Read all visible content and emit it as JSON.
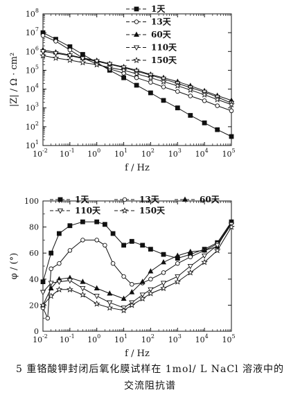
{
  "figure": {
    "caption_line1": "5   重铬酸钾封闭后氧化膜试样在 1mol/ L NaCl 溶液中的",
    "caption_line2": "交流阻抗谱"
  },
  "chart_data": [
    {
      "type": "line",
      "xscale": "log",
      "yscale": "log",
      "xlabel": "f / Hz",
      "ylabel": "|Z| / Ω · cm²",
      "xlim": [
        0.01,
        100000
      ],
      "ylim": [
        10,
        100000000
      ],
      "x_ticks": [
        {
          "base": "10",
          "exp": "-2"
        },
        {
          "base": "10",
          "exp": "-1"
        },
        {
          "base": "10",
          "exp": "0"
        },
        {
          "base": "10",
          "exp": "1"
        },
        {
          "base": "10",
          "exp": "2"
        },
        {
          "base": "10",
          "exp": "3"
        },
        {
          "base": "10",
          "exp": "4"
        },
        {
          "base": "10",
          "exp": "5"
        }
      ],
      "y_ticks": [
        {
          "base": "10",
          "exp": "1"
        },
        {
          "base": "10",
          "exp": "2"
        },
        {
          "base": "10",
          "exp": "3"
        },
        {
          "base": "10",
          "exp": "4"
        },
        {
          "base": "10",
          "exp": "5"
        },
        {
          "base": "10",
          "exp": "6"
        },
        {
          "base": "10",
          "exp": "7"
        },
        {
          "base": "10",
          "exp": "8"
        }
      ],
      "legend_position": "top-right",
      "series": [
        {
          "name": "1天",
          "marker": "square-filled",
          "x": [
            0.01,
            0.03,
            0.1,
            0.3,
            1,
            3,
            10,
            30,
            100,
            300,
            1000,
            3000,
            10000,
            30000,
            100000
          ],
          "y": [
            10000000,
            4500000,
            1800000,
            700000,
            260000,
            100000,
            40000,
            16000,
            6300,
            2500,
            1000,
            400,
            160,
            70,
            30
          ]
        },
        {
          "name": "13天",
          "marker": "circle-open",
          "x": [
            0.01,
            0.03,
            0.1,
            0.3,
            1,
            3,
            10,
            30,
            100,
            300,
            1000,
            3000,
            10000,
            30000,
            100000
          ],
          "y": [
            7000000,
            3500000,
            1200000,
            450000,
            220000,
            120000,
            70000,
            40000,
            23000,
            13000,
            7500,
            4300,
            2400,
            1300,
            700
          ]
        },
        {
          "name": "60天",
          "marker": "triangle-filled",
          "x": [
            0.01,
            0.03,
            0.1,
            0.3,
            1,
            3,
            10,
            30,
            100,
            300,
            1000,
            3000,
            10000,
            30000,
            100000
          ],
          "y": [
            1200000,
            900000,
            650000,
            450000,
            330000,
            220000,
            150000,
            100000,
            60000,
            40000,
            25000,
            15000,
            8000,
            4500,
            2500
          ]
        },
        {
          "name": "110天",
          "marker": "triangle-down-open",
          "x": [
            0.01,
            0.03,
            0.1,
            0.3,
            1,
            3,
            10,
            30,
            100,
            300,
            1000,
            3000,
            10000,
            30000,
            100000
          ],
          "y": [
            1000000,
            800000,
            600000,
            420000,
            300000,
            210000,
            140000,
            90000,
            55000,
            35000,
            20000,
            12000,
            7000,
            3800,
            1800
          ]
        },
        {
          "name": "150天",
          "marker": "star-open",
          "x": [
            0.01,
            0.03,
            0.1,
            0.3,
            1,
            3,
            10,
            30,
            100,
            300,
            1000,
            3000,
            10000,
            30000,
            100000
          ],
          "y": [
            600000,
            450000,
            350000,
            260000,
            200000,
            140000,
            100000,
            65000,
            40000,
            25000,
            15000,
            9000,
            5000,
            2800,
            1500
          ]
        }
      ]
    },
    {
      "type": "line",
      "xscale": "log",
      "xlabel": "f / Hz",
      "ylabel": "φ / (°)",
      "xlim": [
        0.01,
        100000
      ],
      "ylim": [
        0,
        100
      ],
      "x_ticks": [
        {
          "base": "10",
          "exp": "-2"
        },
        {
          "base": "10",
          "exp": "-1"
        },
        {
          "base": "10",
          "exp": "0"
        },
        {
          "base": "10",
          "exp": "1"
        },
        {
          "base": "10",
          "exp": "2"
        },
        {
          "base": "10",
          "exp": "3"
        },
        {
          "base": "10",
          "exp": "4"
        },
        {
          "base": "10",
          "exp": "5"
        }
      ],
      "y_ticks": [
        0,
        20,
        40,
        60,
        80,
        100
      ],
      "legend_position": "top",
      "series": [
        {
          "name": "1天",
          "marker": "square-filled",
          "x": [
            0.01,
            0.02,
            0.04,
            0.1,
            0.3,
            1,
            2,
            4,
            10,
            20,
            50,
            100,
            300,
            1000,
            3000,
            10000,
            30000,
            100000
          ],
          "y": [
            38,
            60,
            75,
            81,
            84,
            84,
            82,
            75,
            66,
            69,
            66,
            63,
            59,
            56,
            59,
            63,
            68,
            84
          ]
        },
        {
          "name": "13天",
          "marker": "circle-open",
          "x": [
            0.01,
            0.015,
            0.02,
            0.04,
            0.1,
            0.3,
            1,
            2,
            4,
            10,
            20,
            50,
            100,
            300,
            1000,
            3000,
            10000,
            30000,
            100000
          ],
          "y": [
            18,
            10,
            48,
            52,
            62,
            70,
            70,
            66,
            52,
            42,
            36,
            37,
            40,
            45,
            52,
            57,
            62,
            67,
            83
          ]
        },
        {
          "name": "60天",
          "marker": "triangle-filled",
          "x": [
            0.01,
            0.02,
            0.04,
            0.1,
            0.3,
            1,
            3,
            10,
            20,
            50,
            100,
            300,
            1000,
            3000,
            10000,
            30000,
            100000
          ],
          "y": [
            20,
            33,
            40,
            41,
            38,
            33,
            29,
            25,
            30,
            38,
            46,
            53,
            58,
            61,
            62,
            65,
            84
          ]
        },
        {
          "name": "110天",
          "marker": "triangle-down-open",
          "x": [
            0.01,
            0.02,
            0.04,
            0.1,
            0.3,
            1,
            3,
            10,
            20,
            50,
            100,
            300,
            1000,
            3000,
            10000,
            30000,
            100000
          ],
          "y": [
            30,
            37,
            38,
            39,
            33,
            27,
            22,
            18,
            22,
            28,
            32,
            37,
            42,
            50,
            58,
            66,
            82
          ]
        },
        {
          "name": "150天",
          "marker": "star-open",
          "x": [
            0.01,
            0.02,
            0.04,
            0.1,
            0.3,
            1,
            3,
            10,
            20,
            50,
            100,
            300,
            1000,
            3000,
            10000,
            30000,
            100000
          ],
          "y": [
            20,
            27,
            32,
            32,
            28,
            21,
            18,
            16,
            20,
            25,
            29,
            33,
            38,
            45,
            53,
            62,
            80
          ]
        }
      ]
    }
  ]
}
